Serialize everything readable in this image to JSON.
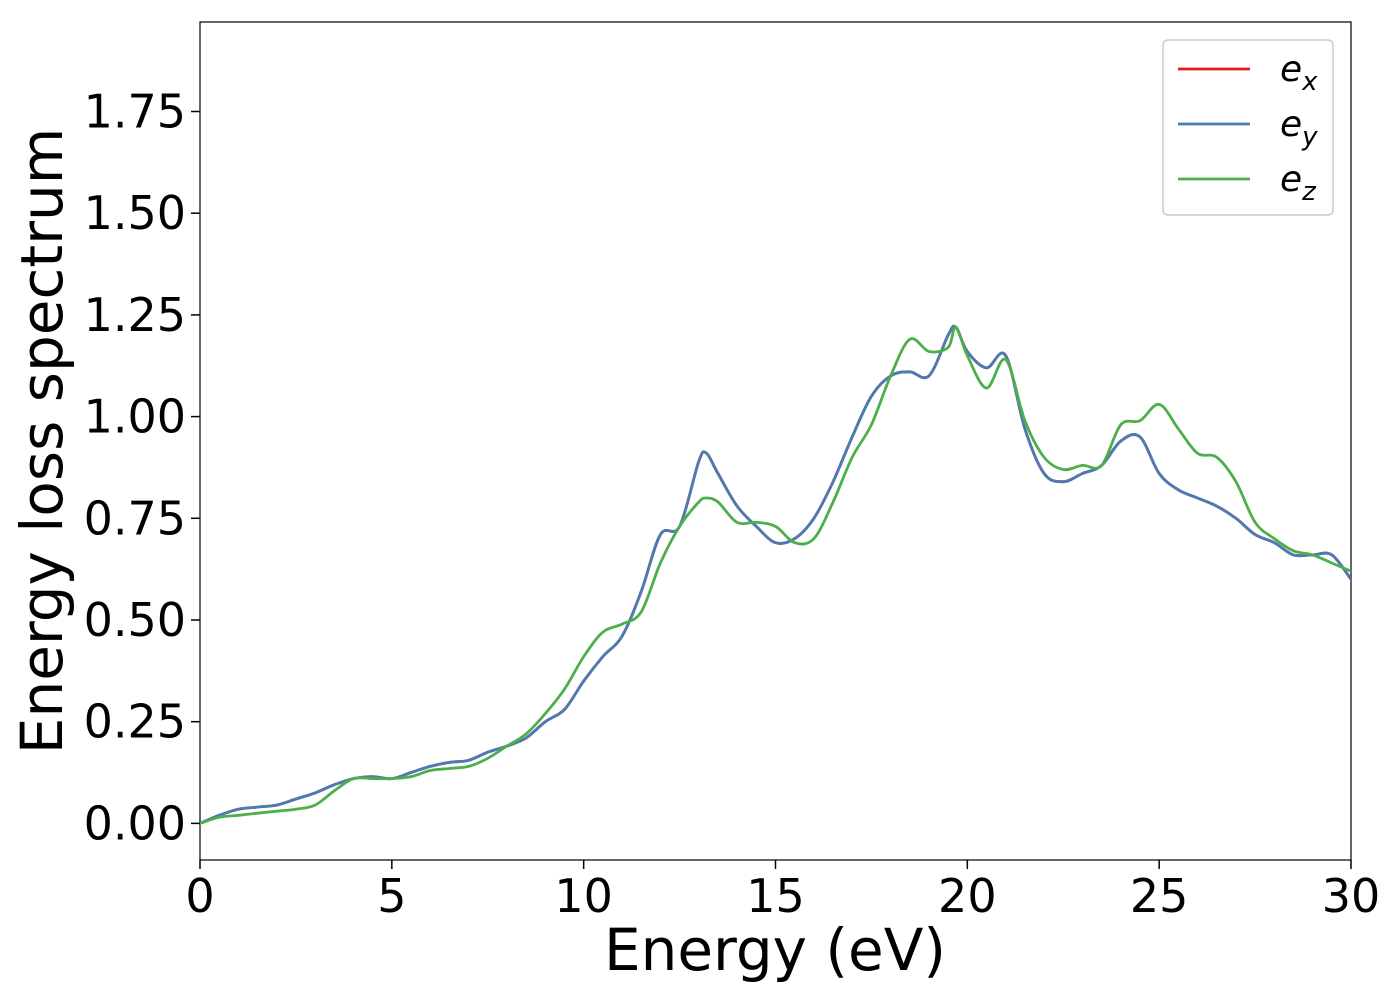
{
  "chart_data": {
    "type": "line",
    "title": "",
    "xlabel": "Energy (eV)",
    "ylabel": "Energy loss spectrum",
    "xlim": [
      0,
      30
    ],
    "ylim": [
      -0.09,
      1.97
    ],
    "xticks": [
      0,
      5,
      10,
      15,
      20,
      25,
      30
    ],
    "xtick_labels": [
      "0",
      "5",
      "10",
      "15",
      "20",
      "25",
      "30"
    ],
    "yticks": [
      0.0,
      0.25,
      0.5,
      0.75,
      1.0,
      1.25,
      1.5,
      1.75
    ],
    "ytick_labels": [
      "0.00",
      "0.25",
      "0.50",
      "0.75",
      "1.00",
      "1.25",
      "1.50",
      "1.75"
    ],
    "grid": false,
    "legend_position": "top-right",
    "series": [
      {
        "name": "e_x",
        "label_base": "e",
        "label_sub": "x",
        "color": "#e41a1c",
        "x": [
          0,
          0.5,
          1,
          1.5,
          2,
          2.5,
          3,
          3.5,
          4,
          4.5,
          5,
          5.5,
          6,
          6.5,
          7,
          7.5,
          8,
          8.5,
          9,
          9.5,
          10,
          10.5,
          11,
          11.5,
          12,
          12.5,
          13,
          13.2,
          13.5,
          14,
          14.5,
          15,
          15.5,
          16,
          16.5,
          17,
          17.5,
          18,
          18.5,
          19,
          19.5,
          19.7,
          20,
          20.5,
          21,
          21.5,
          22,
          22.5,
          23,
          23.5,
          24,
          24.5,
          25,
          25.5,
          26,
          26.5,
          27,
          27.5,
          28,
          28.5,
          29,
          29.5,
          30
        ],
        "y": [
          0.0,
          0.02,
          0.035,
          0.04,
          0.045,
          0.06,
          0.075,
          0.095,
          0.11,
          0.115,
          0.11,
          0.125,
          0.14,
          0.15,
          0.155,
          0.175,
          0.19,
          0.21,
          0.25,
          0.28,
          0.35,
          0.41,
          0.46,
          0.57,
          0.71,
          0.73,
          0.89,
          0.91,
          0.86,
          0.78,
          0.73,
          0.69,
          0.7,
          0.75,
          0.84,
          0.95,
          1.05,
          1.1,
          1.11,
          1.1,
          1.2,
          1.22,
          1.16,
          1.12,
          1.15,
          0.97,
          0.86,
          0.84,
          0.86,
          0.88,
          0.94,
          0.95,
          0.86,
          0.82,
          0.8,
          0.78,
          0.75,
          0.71,
          0.69,
          0.66,
          0.66,
          0.66,
          0.6
        ]
      },
      {
        "name": "e_y",
        "label_base": "e",
        "label_sub": "y",
        "color": "#4a7bb5",
        "x": [
          0,
          0.5,
          1,
          1.5,
          2,
          2.5,
          3,
          3.5,
          4,
          4.5,
          5,
          5.5,
          6,
          6.5,
          7,
          7.5,
          8,
          8.5,
          9,
          9.5,
          10,
          10.5,
          11,
          11.5,
          12,
          12.5,
          13,
          13.2,
          13.5,
          14,
          14.5,
          15,
          15.5,
          16,
          16.5,
          17,
          17.5,
          18,
          18.5,
          19,
          19.5,
          19.7,
          20,
          20.5,
          21,
          21.5,
          22,
          22.5,
          23,
          23.5,
          24,
          24.5,
          25,
          25.5,
          26,
          26.5,
          27,
          27.5,
          28,
          28.5,
          29,
          29.5,
          30
        ],
        "y": [
          0.0,
          0.02,
          0.035,
          0.04,
          0.045,
          0.06,
          0.075,
          0.095,
          0.11,
          0.115,
          0.11,
          0.125,
          0.14,
          0.15,
          0.155,
          0.175,
          0.19,
          0.21,
          0.25,
          0.28,
          0.35,
          0.41,
          0.46,
          0.57,
          0.71,
          0.73,
          0.89,
          0.91,
          0.86,
          0.78,
          0.73,
          0.69,
          0.7,
          0.75,
          0.84,
          0.95,
          1.05,
          1.1,
          1.11,
          1.1,
          1.2,
          1.22,
          1.16,
          1.12,
          1.15,
          0.97,
          0.86,
          0.84,
          0.86,
          0.88,
          0.94,
          0.95,
          0.86,
          0.82,
          0.8,
          0.78,
          0.75,
          0.71,
          0.69,
          0.66,
          0.66,
          0.66,
          0.6
        ]
      },
      {
        "name": "e_z",
        "label_base": "e",
        "label_sub": "z",
        "color": "#4daf4a",
        "x": [
          0,
          0.5,
          1,
          1.5,
          2,
          2.5,
          3,
          3.5,
          4,
          4.5,
          5,
          5.5,
          6,
          6.5,
          7,
          7.5,
          8,
          8.5,
          9,
          9.5,
          10,
          10.5,
          11,
          11.5,
          12,
          12.5,
          13,
          13.2,
          13.5,
          14,
          14.5,
          15,
          15.5,
          16,
          16.5,
          17,
          17.5,
          18,
          18.5,
          19,
          19.5,
          19.7,
          20,
          20.5,
          21,
          21.5,
          22,
          22.5,
          23,
          23.5,
          24,
          24.5,
          25,
          25.5,
          26,
          26.5,
          27,
          27.5,
          28,
          28.5,
          29,
          29.5,
          30
        ],
        "y": [
          0.0,
          0.015,
          0.02,
          0.025,
          0.03,
          0.035,
          0.045,
          0.08,
          0.11,
          0.11,
          0.11,
          0.115,
          0.13,
          0.135,
          0.14,
          0.16,
          0.19,
          0.22,
          0.27,
          0.33,
          0.41,
          0.47,
          0.49,
          0.52,
          0.64,
          0.73,
          0.79,
          0.8,
          0.79,
          0.74,
          0.74,
          0.73,
          0.69,
          0.7,
          0.79,
          0.9,
          0.98,
          1.1,
          1.19,
          1.16,
          1.17,
          1.22,
          1.15,
          1.07,
          1.14,
          0.99,
          0.9,
          0.87,
          0.88,
          0.88,
          0.98,
          0.99,
          1.03,
          0.97,
          0.91,
          0.9,
          0.84,
          0.74,
          0.7,
          0.67,
          0.66,
          0.64,
          0.62
        ]
      }
    ]
  }
}
